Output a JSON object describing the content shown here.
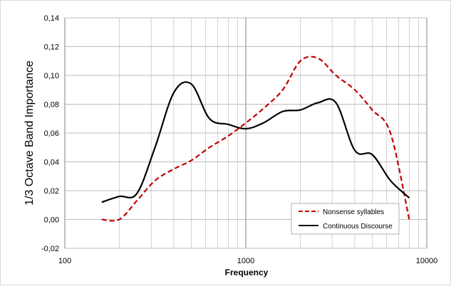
{
  "chart_data": {
    "type": "line",
    "title": "",
    "xlabel": "Frequency",
    "ylabel": "1/3 Octave Band Importance",
    "x_scale": "log",
    "xlim": [
      100,
      10000
    ],
    "ylim": [
      -0.02,
      0.14
    ],
    "x_ticks": [
      "100",
      "1000",
      "10000"
    ],
    "y_ticks": [
      "-0,02",
      "0,00",
      "0,02",
      "0,04",
      "0,06",
      "0,08",
      "0,10",
      "0,12",
      "0,14"
    ],
    "y_tick_values": [
      -0.02,
      0,
      0.02,
      0.04,
      0.06,
      0.08,
      0.1,
      0.12,
      0.14
    ],
    "grid": true,
    "legend_position": "bottom-right",
    "series": [
      {
        "name": "Nonsense syllables",
        "color": "#c00000",
        "dash": "dashed",
        "x": [
          160,
          200,
          250,
          315,
          400,
          500,
          630,
          800,
          1000,
          1250,
          1600,
          2000,
          2500,
          3150,
          4000,
          5000,
          6300,
          8000
        ],
        "y": [
          0.0,
          0.0,
          0.013,
          0.027,
          0.035,
          0.041,
          0.05,
          0.058,
          0.067,
          0.077,
          0.09,
          0.11,
          0.112,
          0.1,
          0.09,
          0.076,
          0.06,
          0.0
        ]
      },
      {
        "name": "Continuous Discourse",
        "color": "#000000",
        "dash": "solid",
        "x": [
          160,
          200,
          250,
          315,
          400,
          500,
          630,
          800,
          1000,
          1250,
          1600,
          2000,
          2500,
          3150,
          4000,
          5000,
          6300,
          8000
        ],
        "y": [
          0.012,
          0.016,
          0.018,
          0.05,
          0.088,
          0.094,
          0.07,
          0.066,
          0.063,
          0.067,
          0.075,
          0.076,
          0.081,
          0.081,
          0.048,
          0.045,
          0.027,
          0.015
        ]
      }
    ]
  }
}
